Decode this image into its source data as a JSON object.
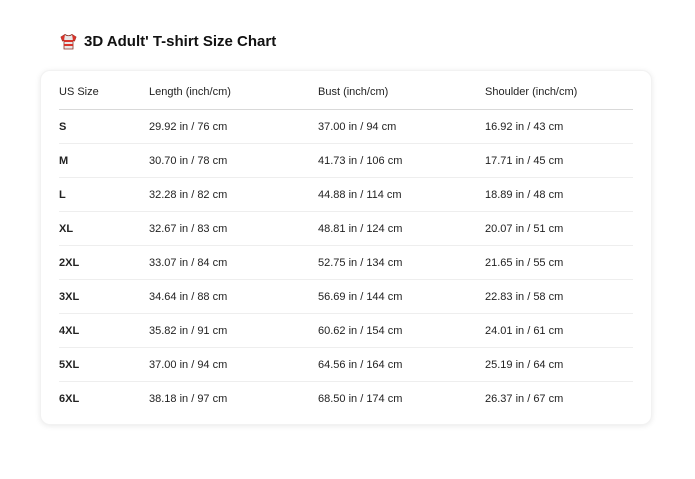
{
  "title": "3D Adult' T-shirt Size Chart",
  "title_icon": "t-shirt-icon",
  "columns": [
    "US Size",
    "Length (inch/cm)",
    "Bust (inch/cm)",
    "Shoulder (inch/cm)"
  ],
  "rows": [
    [
      "S",
      "29.92 in / 76 cm",
      "37.00 in / 94 cm",
      "16.92 in / 43 cm"
    ],
    [
      "M",
      "30.70 in / 78 cm",
      "41.73 in / 106 cm",
      "17.71 in / 45 cm"
    ],
    [
      "L",
      "32.28 in / 82 cm",
      "44.88 in / 114 cm",
      "18.89 in / 48 cm"
    ],
    [
      "XL",
      "32.67 in / 83 cm",
      "48.81 in / 124 cm",
      "20.07 in / 51 cm"
    ],
    [
      "2XL",
      "33.07 in / 84 cm",
      "52.75 in / 134 cm",
      "21.65 in / 55 cm"
    ],
    [
      "3XL",
      "34.64 in / 88 cm",
      "56.69 in / 144 cm",
      "22.83 in / 58 cm"
    ],
    [
      "4XL",
      "35.82 in / 91 cm",
      "60.62 in / 154 cm",
      "24.01 in / 61 cm"
    ],
    [
      "5XL",
      "37.00 in / 94 cm",
      "64.56 in / 164 cm",
      "25.19 in / 64 cm"
    ],
    [
      "6XL",
      "38.18 in / 97 cm",
      "68.50 in / 174 cm",
      "26.37 in / 67 cm"
    ]
  ]
}
